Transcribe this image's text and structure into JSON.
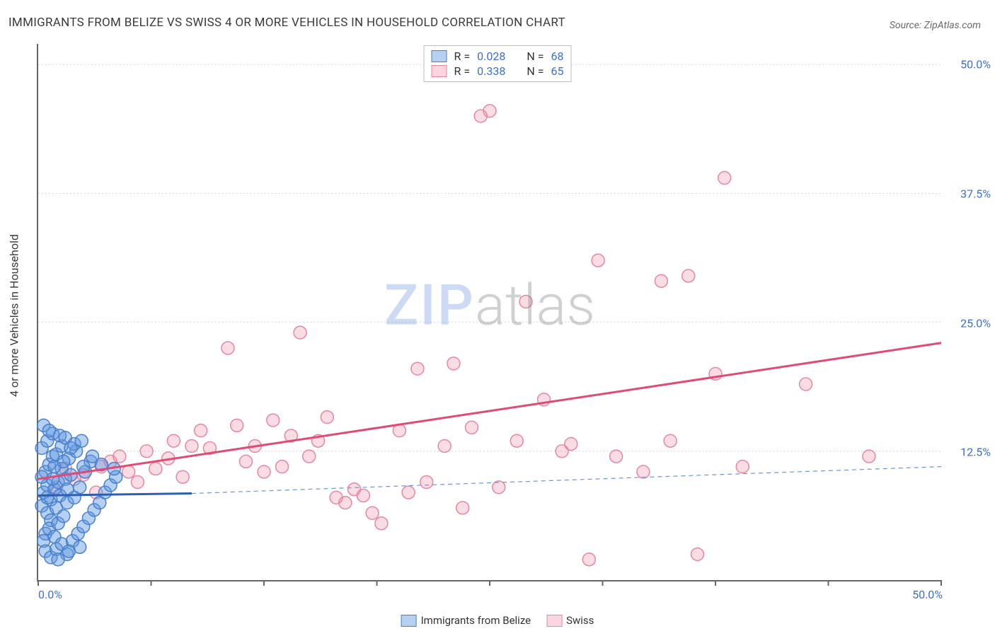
{
  "title": "IMMIGRANTS FROM BELIZE VS SWISS 4 OR MORE VEHICLES IN HOUSEHOLD CORRELATION CHART",
  "source": "Source: ZipAtlas.com",
  "y_axis_label": "4 or more Vehicles in Household",
  "watermark_zip": "ZIP",
  "watermark_atlas": "atlas",
  "chart": {
    "type": "scatter",
    "xlim": [
      0,
      50
    ],
    "ylim": [
      0,
      52
    ],
    "x_tick_positions": [
      0,
      6.25,
      12.5,
      18.75,
      25,
      31.25,
      37.5,
      43.75,
      50
    ],
    "x_tick_labels": {
      "0": "0.0%",
      "50": "50.0%"
    },
    "y_gridlines": [
      12.5,
      25,
      37.5,
      50
    ],
    "y_tick_labels": {
      "12.5": "12.5%",
      "25": "25.0%",
      "37.5": "37.5%",
      "50": "50.0%"
    },
    "background_color": "#ffffff",
    "grid_color": "#d3d3d3",
    "marker_radius": 9,
    "series": [
      {
        "name": "Immigrants from Belize",
        "color_fill": "rgba(93,151,227,0.45)",
        "color_stroke": "#4a7fc9",
        "r_value": "0.028",
        "n_value": "68",
        "trend": {
          "x1": 0,
          "y1": 8.2,
          "x2": 8.5,
          "y2": 8.4,
          "dash_to_x": 50,
          "dash_to_y": 11.0
        },
        "points": [
          [
            0.3,
            8.5
          ],
          [
            0.5,
            9.2
          ],
          [
            0.7,
            7.8
          ],
          [
            0.4,
            10.5
          ],
          [
            0.6,
            11.2
          ],
          [
            0.8,
            12.0
          ],
          [
            0.2,
            7.2
          ],
          [
            0.9,
            8.8
          ],
          [
            1.1,
            9.5
          ],
          [
            1.3,
            10.8
          ],
          [
            0.5,
            6.5
          ],
          [
            0.7,
            5.8
          ],
          [
            1.0,
            7.0
          ],
          [
            1.2,
            8.2
          ],
          [
            1.5,
            9.8
          ],
          [
            1.8,
            10.2
          ],
          [
            0.4,
            4.5
          ],
          [
            0.6,
            5.0
          ],
          [
            0.3,
            3.8
          ],
          [
            0.9,
            4.2
          ],
          [
            1.1,
            5.5
          ],
          [
            1.4,
            6.2
          ],
          [
            1.6,
            7.5
          ],
          [
            2.0,
            8.0
          ],
          [
            2.3,
            9.0
          ],
          [
            2.6,
            10.5
          ],
          [
            2.9,
            11.5
          ],
          [
            0.2,
            12.8
          ],
          [
            0.5,
            13.5
          ],
          [
            0.8,
            14.2
          ],
          [
            1.0,
            12.2
          ],
          [
            1.3,
            13.0
          ],
          [
            1.7,
            11.8
          ],
          [
            2.1,
            12.5
          ],
          [
            2.5,
            11.0
          ],
          [
            0.4,
            2.8
          ],
          [
            0.7,
            2.2
          ],
          [
            1.0,
            3.0
          ],
          [
            1.3,
            3.5
          ],
          [
            1.6,
            2.5
          ],
          [
            1.9,
            3.8
          ],
          [
            2.2,
            4.5
          ],
          [
            2.5,
            5.2
          ],
          [
            2.8,
            6.0
          ],
          [
            3.1,
            6.8
          ],
          [
            3.4,
            7.5
          ],
          [
            3.7,
            8.5
          ],
          [
            4.0,
            9.2
          ],
          [
            4.3,
            10.0
          ],
          [
            0.3,
            15.0
          ],
          [
            0.6,
            14.5
          ],
          [
            1.2,
            14.0
          ],
          [
            1.5,
            13.8
          ],
          [
            2.0,
            13.2
          ],
          [
            0.2,
            10.0
          ],
          [
            0.9,
            11.0
          ],
          [
            1.4,
            11.5
          ],
          [
            1.8,
            12.8
          ],
          [
            2.4,
            13.5
          ],
          [
            3.0,
            12.0
          ],
          [
            3.5,
            11.2
          ],
          [
            4.2,
            10.8
          ],
          [
            1.1,
            2.0
          ],
          [
            1.7,
            2.8
          ],
          [
            2.3,
            3.2
          ],
          [
            0.5,
            8.0
          ],
          [
            0.8,
            9.8
          ],
          [
            1.6,
            8.8
          ]
        ]
      },
      {
        "name": "Swiss",
        "color_fill": "rgba(240,140,165,0.30)",
        "color_stroke": "#e5879f",
        "r_value": "0.338",
        "n_value": "65",
        "trend": {
          "x1": 0,
          "y1": 9.8,
          "x2": 50,
          "y2": 23.0
        },
        "points": [
          [
            1.0,
            9.0
          ],
          [
            2.5,
            10.2
          ],
          [
            3.2,
            8.5
          ],
          [
            4.0,
            11.5
          ],
          [
            4.5,
            12.0
          ],
          [
            5.5,
            9.5
          ],
          [
            6.0,
            12.5
          ],
          [
            6.5,
            10.8
          ],
          [
            7.2,
            11.8
          ],
          [
            8.0,
            10.0
          ],
          [
            8.5,
            13.0
          ],
          [
            9.0,
            14.5
          ],
          [
            9.5,
            12.8
          ],
          [
            10.5,
            22.5
          ],
          [
            11.0,
            15.0
          ],
          [
            11.5,
            11.5
          ],
          [
            12.5,
            10.5
          ],
          [
            13.0,
            15.5
          ],
          [
            14.0,
            14.0
          ],
          [
            14.5,
            24.0
          ],
          [
            15.0,
            12.0
          ],
          [
            15.5,
            13.5
          ],
          [
            16.0,
            15.8
          ],
          [
            16.5,
            8.0
          ],
          [
            17.0,
            7.5
          ],
          [
            17.5,
            8.8
          ],
          [
            18.0,
            8.2
          ],
          [
            19.0,
            5.5
          ],
          [
            20.0,
            14.5
          ],
          [
            21.0,
            20.5
          ],
          [
            21.5,
            9.5
          ],
          [
            22.5,
            13.0
          ],
          [
            23.0,
            21.0
          ],
          [
            23.5,
            7.0
          ],
          [
            24.0,
            14.8
          ],
          [
            24.5,
            45.0
          ],
          [
            25.0,
            45.5
          ],
          [
            25.5,
            9.0
          ],
          [
            26.5,
            13.5
          ],
          [
            27.0,
            27.0
          ],
          [
            28.0,
            17.5
          ],
          [
            29.0,
            12.5
          ],
          [
            29.5,
            13.2
          ],
          [
            30.5,
            2.0
          ],
          [
            31.0,
            31.0
          ],
          [
            32.0,
            12.0
          ],
          [
            33.5,
            10.5
          ],
          [
            34.5,
            29.0
          ],
          [
            35.0,
            13.5
          ],
          [
            36.0,
            29.5
          ],
          [
            36.5,
            2.5
          ],
          [
            37.5,
            20.0
          ],
          [
            38.0,
            39.0
          ],
          [
            39.0,
            11.0
          ],
          [
            42.5,
            19.0
          ],
          [
            46.0,
            12.0
          ],
          [
            1.5,
            10.8
          ],
          [
            2.0,
            9.8
          ],
          [
            3.5,
            11.0
          ],
          [
            5.0,
            10.5
          ],
          [
            7.5,
            13.5
          ],
          [
            12.0,
            13.0
          ],
          [
            13.5,
            11.0
          ],
          [
            18.5,
            6.5
          ],
          [
            20.5,
            8.5
          ]
        ]
      }
    ]
  },
  "r_legend": {
    "r_label": "R =",
    "n_label": "N ="
  },
  "bottom_legend": {
    "label1": "Immigrants from Belize",
    "label2": "Swiss"
  }
}
